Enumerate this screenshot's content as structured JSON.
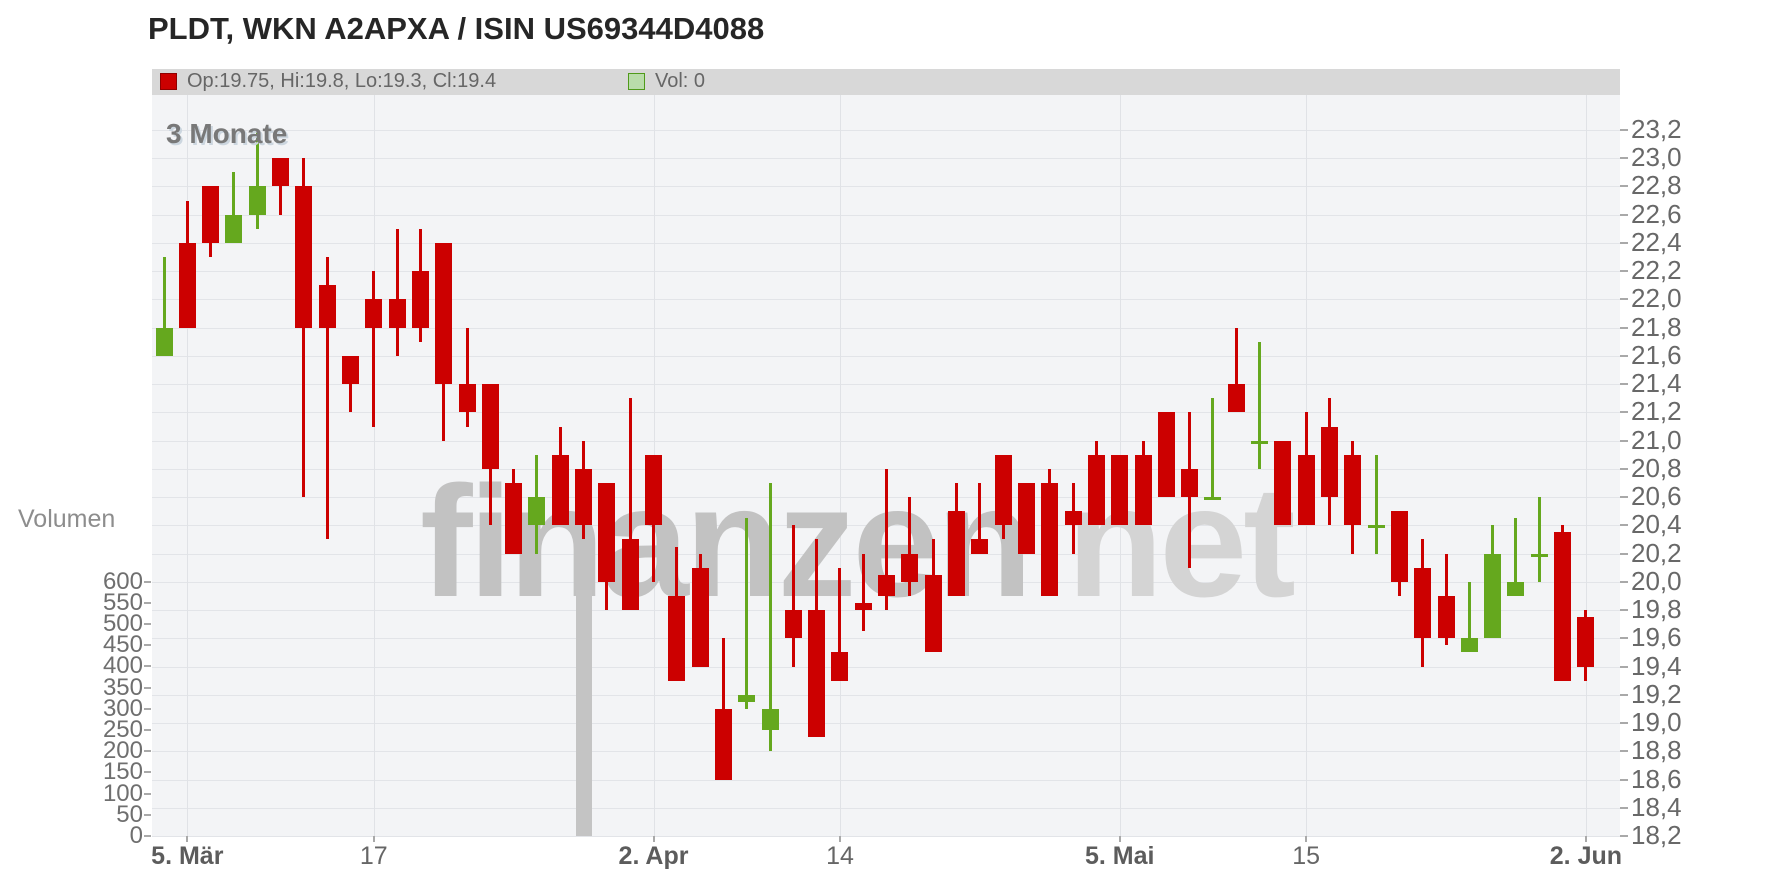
{
  "title": "PLDT, WKN A2APXA / ISIN US69344D4088",
  "legend": {
    "ohlc_label": "Op:19.75, Hi:19.8, Lo:19.3, Cl:19.4",
    "vol_label": "Vol: 0"
  },
  "range_label": "3 Monate",
  "watermark": {
    "part1": "finanzen",
    "part2": "net"
  },
  "colors": {
    "up": "#65a81e",
    "down": "#cc0000",
    "volume_bar": "#c4c4c4",
    "plot_bg": "#f3f4f6",
    "grid": "#e2e4e8",
    "legend_bg": "#d8d8d8",
    "legend_down_swatch": "#cc0000",
    "legend_up_swatch": "#b9dcaa"
  },
  "chart_data": {
    "type": "candlestick+volume",
    "title": "PLDT, WKN A2APXA / ISIN US69344D4088",
    "x_unit": "trading_day",
    "grid": true,
    "price_axis": {
      "side": "right",
      "ylim": [
        18.2,
        23.2
      ],
      "tick_step": 0.2,
      "ticks": [
        23.2,
        23.0,
        22.8,
        22.6,
        22.4,
        22.2,
        22.0,
        21.8,
        21.6,
        21.4,
        21.2,
        21.0,
        20.8,
        20.6,
        20.4,
        20.2,
        20.0,
        19.8,
        19.6,
        19.4,
        19.2,
        19.0,
        18.8,
        18.6,
        18.4,
        18.2
      ],
      "decimal_separator": ","
    },
    "volume_axis": {
      "side": "left",
      "title": "Volumen",
      "ylim": [
        0,
        600
      ],
      "ticks": [
        600,
        550,
        500,
        450,
        400,
        350,
        300,
        250,
        200,
        150,
        100,
        50,
        0
      ]
    },
    "x_axis": {
      "labels": [
        {
          "text": "5. Mär",
          "index": 1,
          "bold": true
        },
        {
          "text": "17",
          "index": 9,
          "bold": false
        },
        {
          "text": "2. Apr",
          "index": 21,
          "bold": true
        },
        {
          "text": "14",
          "index": 29,
          "bold": false
        },
        {
          "text": "5. Mai",
          "index": 41,
          "bold": true
        },
        {
          "text": "15",
          "index": 49,
          "bold": false
        },
        {
          "text": "2. Jun",
          "index": 61,
          "bold": true
        }
      ]
    },
    "candles_format": [
      "open",
      "high",
      "low",
      "close"
    ],
    "candles": [
      [
        21.6,
        22.3,
        21.6,
        21.8
      ],
      [
        22.4,
        22.7,
        21.8,
        21.8
      ],
      [
        22.8,
        22.8,
        22.3,
        22.4
      ],
      [
        22.4,
        22.9,
        22.4,
        22.6
      ],
      [
        22.6,
        23.2,
        22.5,
        22.8
      ],
      [
        23.0,
        23.0,
        22.6,
        22.8
      ],
      [
        22.8,
        23.0,
        20.6,
        21.8
      ],
      [
        22.1,
        22.3,
        20.3,
        21.8
      ],
      [
        21.6,
        21.6,
        21.2,
        21.4
      ],
      [
        22.0,
        22.2,
        21.1,
        21.8
      ],
      [
        22.0,
        22.5,
        21.6,
        21.8
      ],
      [
        22.2,
        22.5,
        21.7,
        21.8
      ],
      [
        22.4,
        22.4,
        21.0,
        21.4
      ],
      [
        21.4,
        21.8,
        21.1,
        21.2
      ],
      [
        21.4,
        21.4,
        20.4,
        20.8
      ],
      [
        20.7,
        20.8,
        20.2,
        20.2
      ],
      [
        20.4,
        20.9,
        20.2,
        20.6
      ],
      [
        20.9,
        21.1,
        20.4,
        20.4
      ],
      [
        20.8,
        21.0,
        20.3,
        20.4
      ],
      [
        20.7,
        20.7,
        19.8,
        20.0
      ],
      [
        20.3,
        21.3,
        19.8,
        19.8
      ],
      [
        20.9,
        20.9,
        20.0,
        20.4
      ],
      [
        19.9,
        20.25,
        19.3,
        19.3
      ],
      [
        20.1,
        20.2,
        19.4,
        19.4
      ],
      [
        19.1,
        19.6,
        18.6,
        18.6
      ],
      [
        19.15,
        20.45,
        19.1,
        19.2
      ],
      [
        18.95,
        20.7,
        18.8,
        19.1
      ],
      [
        19.8,
        20.4,
        19.4,
        19.6
      ],
      [
        19.8,
        20.3,
        18.9,
        18.9
      ],
      [
        19.5,
        20.1,
        19.3,
        19.3
      ],
      [
        19.85,
        20.2,
        19.65,
        19.8
      ],
      [
        20.05,
        20.8,
        19.8,
        19.9
      ],
      [
        20.2,
        20.6,
        19.9,
        20.0
      ],
      [
        20.05,
        20.3,
        19.5,
        19.5
      ],
      [
        20.5,
        20.7,
        19.9,
        19.9
      ],
      [
        20.3,
        20.7,
        20.2,
        20.2
      ],
      [
        20.9,
        20.9,
        20.3,
        20.4
      ],
      [
        20.7,
        20.7,
        20.2,
        20.2
      ],
      [
        20.7,
        20.8,
        19.9,
        19.9
      ],
      [
        20.5,
        20.7,
        20.2,
        20.4
      ],
      [
        20.9,
        21.0,
        20.4,
        20.4
      ],
      [
        20.9,
        20.9,
        20.4,
        20.4
      ],
      [
        20.9,
        21.0,
        20.4,
        20.4
      ],
      [
        21.2,
        21.2,
        20.6,
        20.6
      ],
      [
        20.8,
        21.2,
        20.1,
        20.6
      ],
      [
        20.6,
        21.3,
        20.6,
        20.6
      ],
      [
        21.4,
        21.8,
        21.2,
        21.2
      ],
      [
        21.0,
        21.7,
        20.8,
        21.0
      ],
      [
        21.0,
        21.0,
        20.4,
        20.4
      ],
      [
        20.9,
        21.2,
        20.4,
        20.4
      ],
      [
        21.1,
        21.3,
        20.4,
        20.6
      ],
      [
        20.9,
        21.0,
        20.2,
        20.4
      ],
      [
        20.4,
        20.9,
        20.2,
        20.4
      ],
      [
        20.5,
        20.5,
        19.9,
        20.0
      ],
      [
        20.1,
        20.3,
        19.4,
        19.6
      ],
      [
        19.9,
        20.2,
        19.55,
        19.6
      ],
      [
        19.5,
        20.0,
        19.5,
        19.6
      ],
      [
        19.6,
        20.4,
        19.6,
        20.2
      ],
      [
        19.9,
        20.45,
        19.9,
        20.0
      ],
      [
        20.2,
        20.6,
        20.0,
        20.2
      ],
      [
        20.35,
        20.4,
        19.3,
        19.3
      ],
      [
        19.75,
        19.8,
        19.3,
        19.4
      ]
    ],
    "volume_bars": [
      {
        "index": 18,
        "value": 580
      }
    ]
  }
}
